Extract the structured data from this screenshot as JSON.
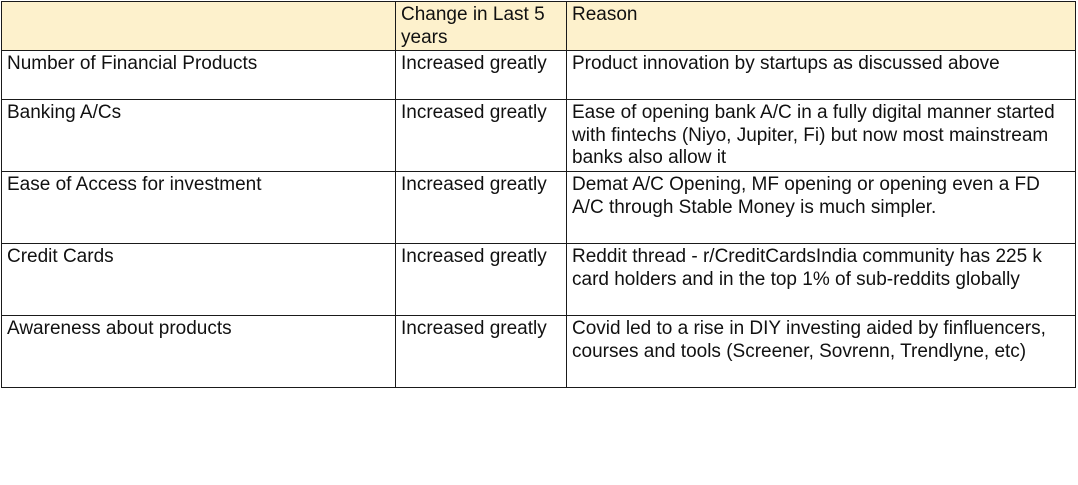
{
  "table": {
    "headers": [
      "",
      "Change in Last 5 years",
      "Reason"
    ],
    "rows": [
      {
        "item": "Number of Financial Products",
        "change": "Increased greatly",
        "reason": "Product innovation by startups as discussed above"
      },
      {
        "item": "Banking A/Cs",
        "change": "Increased greatly",
        "reason": "Ease of opening bank A/C in a fully digital manner started with fintechs (Niyo, Jupiter, Fi) but now most mainstream banks also allow it"
      },
      {
        "item": "Ease of Access for investment",
        "change": "Increased greatly",
        "reason": "Demat A/C Opening, MF opening or opening even a FD A/C through Stable Money is much simpler."
      },
      {
        "item": "Credit Cards",
        "change": "Increased greatly",
        "reason": "Reddit thread - r/CreditCardsIndia community has 225 k card holders  and in the top 1% of sub-reddits globally"
      },
      {
        "item": "Awareness about products",
        "change": "Increased greatly",
        "reason": "Covid led to a rise in DIY investing aided by finfluencers, courses and tools (Screener, Sovrenn, Trendlyne, etc)"
      }
    ]
  },
  "colors": {
    "header_bg": "#fdf1cc",
    "border": "#1a1a1a",
    "text": "#111111"
  }
}
